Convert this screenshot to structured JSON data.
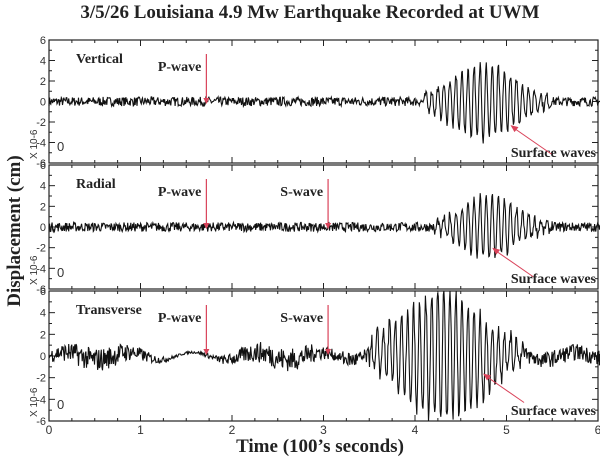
{
  "chart_data": {
    "type": "line",
    "title": "3/5/26 Louisiana 4.9 Mw Earthquake Recorded at UWM",
    "xlabel": "Time (100’s seconds)",
    "ylabel": "Displacement (cm)",
    "xlim": [
      0,
      6.1
    ],
    "xticks": [
      "0",
      "1",
      "2",
      "3",
      "4",
      "5",
      "6"
    ],
    "ylim": [
      -6,
      6
    ],
    "yticks": [
      "6",
      "4",
      "2",
      "0",
      "-2",
      "-4",
      "-6"
    ],
    "y_multiplier": "X 10-6",
    "panel_offset_label": "0",
    "arrow_color": "#d9435a",
    "panels": [
      {
        "name": "Vertical",
        "annotations": [
          {
            "label": "P-wave",
            "x": 1.72
          },
          {
            "label": "Surface waves",
            "x": 5.0,
            "y": -2.5
          }
        ],
        "surface_wave_window": [
          4.4,
          5.1
        ],
        "peak_amplitude": 3.7
      },
      {
        "name": "Radial",
        "annotations": [
          {
            "label": "P-wave",
            "x": 1.72
          },
          {
            "label": "S-wave",
            "x": 3.05
          },
          {
            "label": "Surface waves",
            "x": 4.8,
            "y": -2.2
          }
        ],
        "surface_wave_window": [
          4.5,
          5.1
        ],
        "peak_amplitude": 3.0
      },
      {
        "name": "Transverse",
        "annotations": [
          {
            "label": "P-wave",
            "x": 1.72
          },
          {
            "label": "S-wave",
            "x": 3.05
          },
          {
            "label": "Surface waves",
            "x": 4.7,
            "y": -1.8
          }
        ],
        "surface_wave_window": [
          3.8,
          4.8
        ],
        "peak_amplitude": 6.0
      }
    ]
  }
}
